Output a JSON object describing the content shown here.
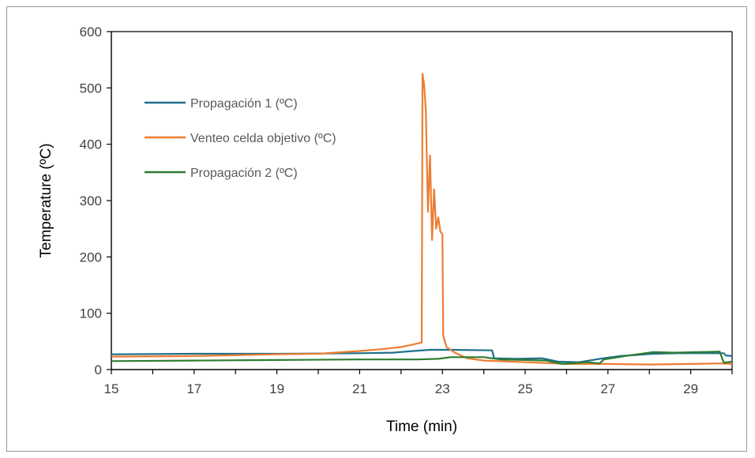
{
  "chart_data": {
    "type": "line",
    "xlabel": "Time (min)",
    "ylabel": "Temperature (ºC)",
    "xlim": [
      15,
      30
    ],
    "ylim": [
      0,
      600
    ],
    "x_ticks": [
      "15",
      "17",
      "19",
      "21",
      "23",
      "25",
      "27",
      "29"
    ],
    "y_ticks": [
      "0",
      "100",
      "200",
      "300",
      "400",
      "500",
      "600"
    ],
    "grid": false,
    "legend_position": "top-left",
    "series": [
      {
        "name": "Propagación 1 (ºC)",
        "color": "#1f6f8b",
        "points": [
          [
            15,
            27
          ],
          [
            17,
            28
          ],
          [
            19,
            28
          ],
          [
            21,
            29
          ],
          [
            21.8,
            30
          ],
          [
            22.3,
            33
          ],
          [
            22.7,
            35
          ],
          [
            23.2,
            35
          ],
          [
            24.2,
            34
          ],
          [
            24.25,
            20
          ],
          [
            24.8,
            19
          ],
          [
            25.4,
            20
          ],
          [
            25.8,
            14
          ],
          [
            26.3,
            13
          ],
          [
            26.8,
            19
          ],
          [
            27.3,
            24
          ],
          [
            28.1,
            28
          ],
          [
            28.7,
            29
          ],
          [
            29.3,
            29
          ],
          [
            29.8,
            29
          ],
          [
            29.85,
            25
          ],
          [
            30,
            24
          ]
        ]
      },
      {
        "name": "Venteo celda objetivo (ºC)",
        "color": "#ed7d31",
        "points": [
          [
            15,
            23
          ],
          [
            17,
            24
          ],
          [
            19,
            27
          ],
          [
            20,
            28
          ],
          [
            21,
            33
          ],
          [
            21.5,
            36
          ],
          [
            22,
            40
          ],
          [
            22.5,
            48
          ],
          [
            22.52,
            525
          ],
          [
            22.56,
            505
          ],
          [
            22.6,
            460
          ],
          [
            22.65,
            280
          ],
          [
            22.7,
            380
          ],
          [
            22.75,
            230
          ],
          [
            22.8,
            320
          ],
          [
            22.85,
            250
          ],
          [
            22.9,
            270
          ],
          [
            22.95,
            245
          ],
          [
            23.0,
            240
          ],
          [
            23.02,
            60
          ],
          [
            23.1,
            40
          ],
          [
            23.3,
            30
          ],
          [
            23.6,
            20
          ],
          [
            24,
            16
          ],
          [
            25,
            13
          ],
          [
            26,
            10
          ],
          [
            27,
            10
          ],
          [
            28,
            9
          ],
          [
            29,
            10
          ],
          [
            29.7,
            11
          ],
          [
            30,
            10
          ]
        ]
      },
      {
        "name": "Propagación 2 (ºC)",
        "color": "#2e7d32",
        "points": [
          [
            15,
            15
          ],
          [
            17,
            16
          ],
          [
            19,
            17
          ],
          [
            21,
            18
          ],
          [
            22.4,
            18
          ],
          [
            22.9,
            19
          ],
          [
            23.2,
            22
          ],
          [
            24,
            22
          ],
          [
            24.4,
            18
          ],
          [
            25,
            17
          ],
          [
            25.5,
            16
          ],
          [
            25.9,
            10
          ],
          [
            26.5,
            13
          ],
          [
            26.8,
            11
          ],
          [
            26.9,
            18
          ],
          [
            27.5,
            25
          ],
          [
            28.1,
            31
          ],
          [
            28.6,
            30
          ],
          [
            29.2,
            31
          ],
          [
            29.7,
            32
          ],
          [
            29.8,
            12
          ],
          [
            30,
            14
          ]
        ]
      }
    ]
  }
}
